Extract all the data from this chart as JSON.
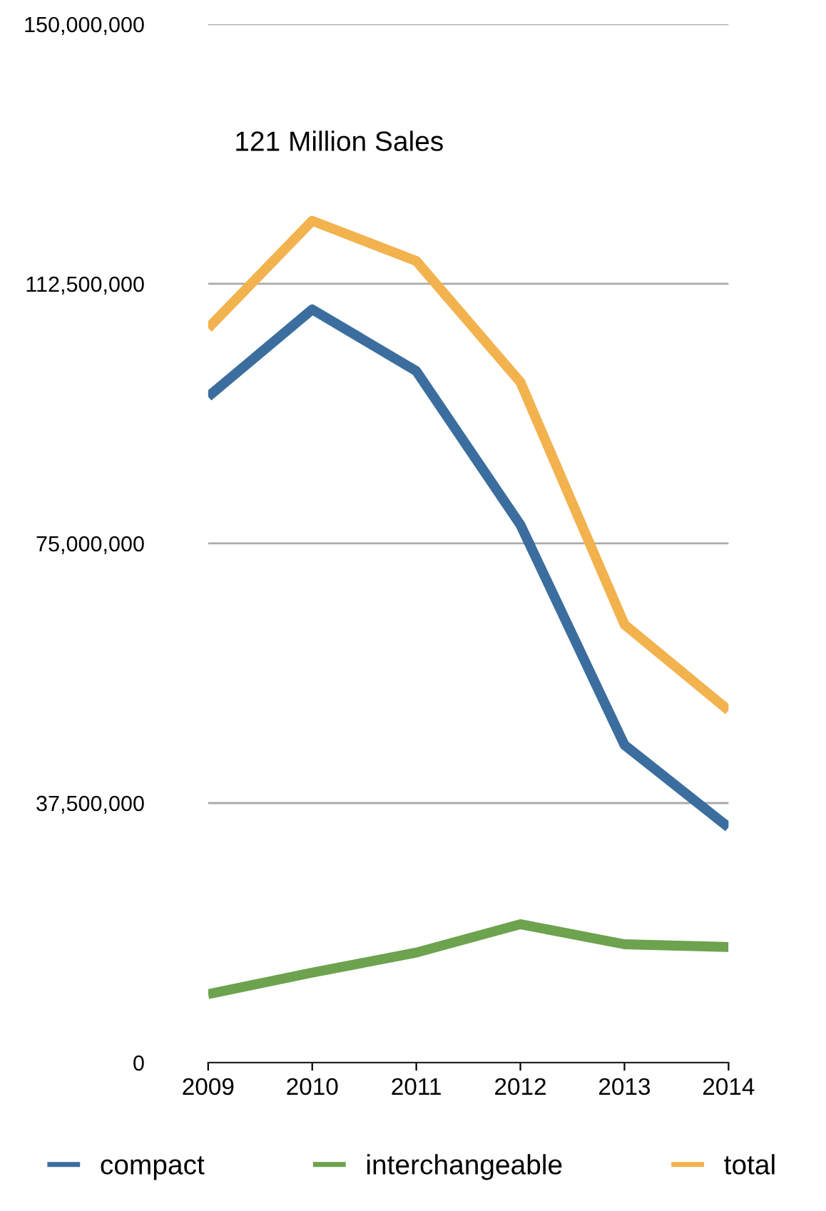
{
  "chart_data": {
    "type": "line",
    "title": "121 Million Sales",
    "categories": [
      "2009",
      "2010",
      "2011",
      "2012",
      "2013",
      "2014"
    ],
    "series": [
      {
        "name": "compact",
        "color": "#3b6e9e",
        "values": [
          96200000,
          108800000,
          99900000,
          77700000,
          45900000,
          34000000
        ]
      },
      {
        "name": "interchangeable",
        "color": "#6da24f",
        "values": [
          9900000,
          13000000,
          15900000,
          20000000,
          17100000,
          16700000
        ]
      },
      {
        "name": "total",
        "color": "#f2b24e",
        "values": [
          106100000,
          121600000,
          115800000,
          98300000,
          63300000,
          50900000
        ]
      }
    ],
    "ylim": [
      0,
      150000000
    ],
    "yticks": [
      {
        "value": 0,
        "label": "0"
      },
      {
        "value": 37500000,
        "label": "37,500,000"
      },
      {
        "value": 75000000,
        "label": "75,000,000"
      },
      {
        "value": 112500000,
        "label": "112,500,000"
      },
      {
        "value": 150000000,
        "label": "150,000,000"
      }
    ],
    "grid": "y",
    "legend": "bottom",
    "marker": "none",
    "line_style": "solid"
  }
}
